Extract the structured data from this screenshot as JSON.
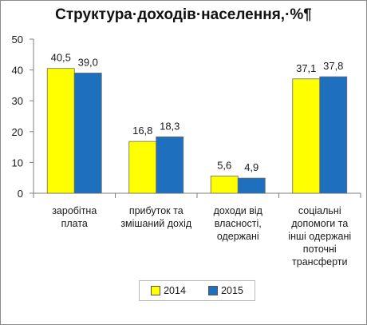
{
  "chart_data": {
    "type": "bar",
    "title": "Структура·доходів·населення,·%¶",
    "categories": [
      [
        "заробітна",
        "плата"
      ],
      [
        "прибуток та",
        "змішаний дохід"
      ],
      [
        "доходи від",
        "власності,",
        "одержані"
      ],
      [
        "соціальні",
        "допомоги та",
        "інші одержані",
        "поточні",
        "трансферти"
      ]
    ],
    "series": [
      {
        "name": "2014",
        "color": "#ffff00",
        "values": [
          40.5,
          16.8,
          5.6,
          37.1
        ],
        "labels": [
          "40,5",
          "16,8",
          "5,6",
          "37,1"
        ]
      },
      {
        "name": "2015",
        "color": "#1f6fbf",
        "values": [
          39.0,
          18.3,
          4.9,
          37.8
        ],
        "labels": [
          "39,0",
          "18,3",
          "4,9",
          "37,8"
        ]
      }
    ],
    "ylim": [
      0,
      50
    ],
    "yticks": [
      0,
      10,
      20,
      30,
      40,
      50
    ],
    "grid": false,
    "legend_position": "bottom"
  }
}
